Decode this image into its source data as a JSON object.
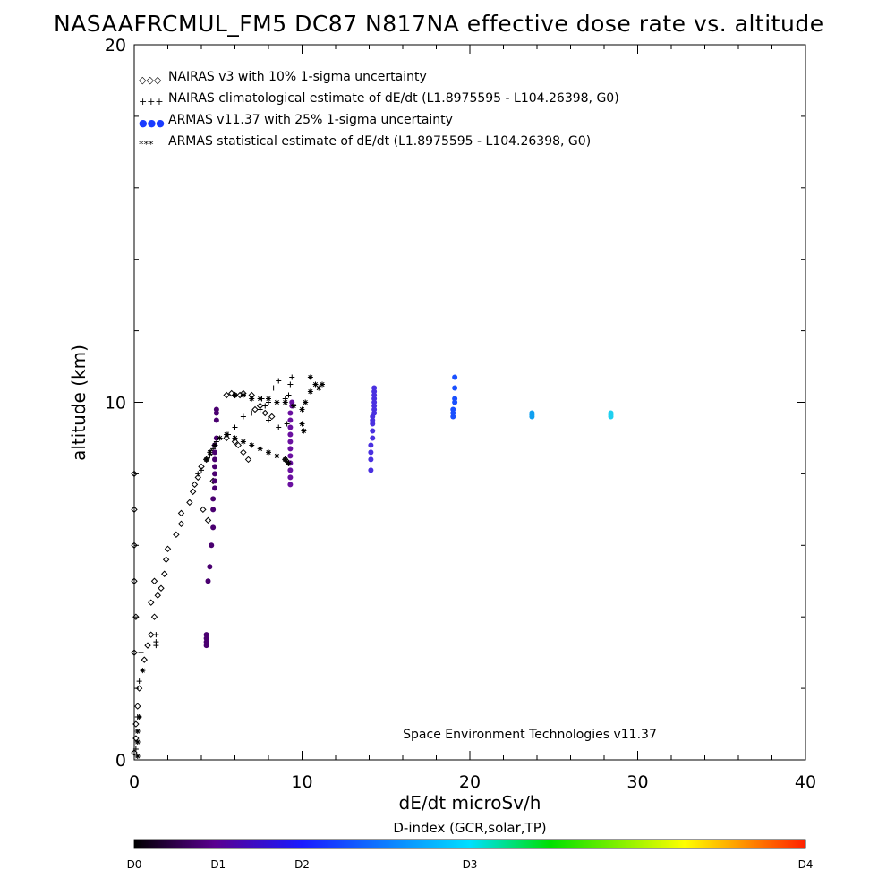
{
  "chart_data": {
    "type": "scatter",
    "title": "NASAAFRCMUL_FM5 DC87 N817NA effective dose rate vs. altitude",
    "xlabel": "dE/dt microSv/h",
    "ylabel": "altitude (km)",
    "xlim": [
      0,
      40
    ],
    "ylim": [
      0,
      20
    ],
    "xticks": [
      "0",
      "10",
      "20",
      "30",
      "40"
    ],
    "yticks": [
      "0",
      "10",
      "20"
    ],
    "legend_position": "top-left",
    "legend": [
      {
        "symbol": "◇◇◇",
        "label": "NAIRAS v3 with 10% 1-sigma uncertainty",
        "color": "#000000"
      },
      {
        "symbol": "+++",
        "label": "NAIRAS climatological estimate of dE/dt (L1.8975595 - L104.26398, G0)",
        "color": "#000000"
      },
      {
        "symbol": "●●●",
        "label": "ARMAS v11.37 with 25% 1-sigma uncertainty",
        "color": "#1a3cff"
      },
      {
        "symbol": "***",
        "label": "ARMAS statistical estimate of dE/dt (L1.8975595 - L104.26398, G0)",
        "color": "#000000"
      }
    ],
    "annotation": "Space Environment Technologies v11.37",
    "colorbar": {
      "title": "D-index (GCR,solar,TP)",
      "labels": [
        "D0",
        "D1",
        "D2",
        "D3",
        "D4"
      ],
      "label_positions": [
        0,
        0.125,
        0.25,
        0.5,
        1.0
      ],
      "colors": [
        "#000000",
        "#5a0090",
        "#1a1aff",
        "#00e0ff",
        "#00e000",
        "#ffff00",
        "#ff2000"
      ]
    },
    "series": [
      {
        "name": "NAIRAS v3",
        "marker": "diamond",
        "color": "#000000",
        "points": [
          [
            0.0,
            0.2
          ],
          [
            0.1,
            0.6
          ],
          [
            0.1,
            1.0
          ],
          [
            0.2,
            1.5
          ],
          [
            0.3,
            2.0
          ],
          [
            0.0,
            3.0
          ],
          [
            0.1,
            4.0
          ],
          [
            0.0,
            5.0
          ],
          [
            0.0,
            6.0
          ],
          [
            0.0,
            7.0
          ],
          [
            0.0,
            8.0
          ],
          [
            0.6,
            2.8
          ],
          [
            0.8,
            3.2
          ],
          [
            1.0,
            3.5
          ],
          [
            1.2,
            4.0
          ],
          [
            1.0,
            4.4
          ],
          [
            1.4,
            4.6
          ],
          [
            1.6,
            4.8
          ],
          [
            1.2,
            5.0
          ],
          [
            1.8,
            5.2
          ],
          [
            1.9,
            5.6
          ],
          [
            2.0,
            5.9
          ],
          [
            2.5,
            6.3
          ],
          [
            2.8,
            6.6
          ],
          [
            2.8,
            6.9
          ],
          [
            3.3,
            7.2
          ],
          [
            3.5,
            7.5
          ],
          [
            3.6,
            7.7
          ],
          [
            3.8,
            7.9
          ],
          [
            4.0,
            8.2
          ],
          [
            4.3,
            8.4
          ],
          [
            4.6,
            8.6
          ],
          [
            4.8,
            8.8
          ],
          [
            4.1,
            7.0
          ],
          [
            4.4,
            6.7
          ],
          [
            4.7,
            7.8
          ],
          [
            5.5,
            10.2
          ],
          [
            5.8,
            10.25
          ],
          [
            6.0,
            10.2
          ],
          [
            6.3,
            10.2
          ],
          [
            6.5,
            10.25
          ],
          [
            7.0,
            10.2
          ],
          [
            7.2,
            9.8
          ],
          [
            7.5,
            9.9
          ],
          [
            7.8,
            9.7
          ],
          [
            8.2,
            9.6
          ],
          [
            6.8,
            8.4
          ],
          [
            6.5,
            8.6
          ],
          [
            6.2,
            8.8
          ],
          [
            6.0,
            8.9
          ],
          [
            5.5,
            9.0
          ],
          [
            9.0,
            8.4
          ],
          [
            9.2,
            8.3
          ]
        ]
      },
      {
        "name": "NAIRAS climatological",
        "marker": "plus",
        "color": "#000000",
        "points": [
          [
            0.1,
            0.3
          ],
          [
            0.2,
            1.2
          ],
          [
            0.3,
            2.2
          ],
          [
            0.4,
            3.0
          ],
          [
            1.3,
            3.2
          ],
          [
            1.3,
            3.3
          ],
          [
            1.3,
            3.5
          ],
          [
            3.8,
            8.0
          ],
          [
            4.0,
            8.1
          ],
          [
            4.5,
            8.5
          ],
          [
            4.7,
            8.7
          ],
          [
            4.9,
            8.9
          ],
          [
            5.6,
            9.1
          ],
          [
            6.0,
            9.3
          ],
          [
            6.5,
            9.6
          ],
          [
            7.0,
            9.7
          ],
          [
            7.5,
            9.8
          ],
          [
            7.8,
            9.9
          ],
          [
            8.0,
            10.0
          ],
          [
            8.3,
            10.4
          ],
          [
            8.6,
            10.6
          ],
          [
            9.0,
            10.1
          ],
          [
            9.2,
            10.2
          ],
          [
            9.3,
            10.5
          ],
          [
            9.4,
            10.7
          ],
          [
            7.6,
            10.1
          ],
          [
            8.0,
            9.5
          ],
          [
            8.6,
            9.3
          ],
          [
            9.1,
            9.4
          ]
        ]
      },
      {
        "name": "ARMAS v11.37",
        "marker": "dot",
        "points": [
          [
            4.3,
            3.2
          ],
          [
            4.3,
            3.3
          ],
          [
            4.3,
            3.4
          ],
          [
            4.3,
            3.5
          ],
          [
            4.4,
            5.0
          ],
          [
            4.5,
            5.4
          ],
          [
            4.6,
            6.0
          ],
          [
            4.7,
            6.5
          ],
          [
            4.7,
            7.0
          ],
          [
            4.7,
            7.3
          ],
          [
            4.8,
            7.6
          ],
          [
            4.8,
            7.8
          ],
          [
            4.8,
            8.0
          ],
          [
            4.8,
            8.2
          ],
          [
            4.8,
            8.4
          ],
          [
            4.8,
            8.6
          ],
          [
            4.8,
            8.8
          ],
          [
            4.9,
            9.0
          ],
          [
            4.9,
            9.5
          ],
          [
            4.9,
            9.7
          ],
          [
            4.9,
            9.8
          ],
          [
            9.3,
            7.7
          ],
          [
            9.3,
            7.9
          ],
          [
            9.3,
            8.1
          ],
          [
            9.3,
            8.3
          ],
          [
            9.3,
            8.5
          ],
          [
            9.3,
            8.7
          ],
          [
            9.3,
            8.9
          ],
          [
            9.3,
            9.1
          ],
          [
            9.3,
            9.3
          ],
          [
            9.3,
            9.5
          ],
          [
            9.3,
            9.7
          ],
          [
            9.4,
            9.9
          ],
          [
            9.4,
            10.0
          ],
          [
            14.1,
            8.1
          ],
          [
            14.1,
            8.4
          ],
          [
            14.1,
            8.6
          ],
          [
            14.1,
            8.8
          ],
          [
            14.2,
            9.0
          ],
          [
            14.2,
            9.2
          ],
          [
            14.2,
            9.4
          ],
          [
            14.2,
            9.5
          ],
          [
            14.2,
            9.6
          ],
          [
            14.3,
            9.7
          ],
          [
            14.3,
            9.8
          ],
          [
            14.3,
            9.9
          ],
          [
            14.3,
            10.0
          ],
          [
            14.3,
            10.1
          ],
          [
            14.3,
            10.2
          ],
          [
            14.3,
            10.3
          ],
          [
            14.3,
            10.4
          ],
          [
            19.0,
            9.6
          ],
          [
            19.0,
            9.7
          ],
          [
            19.0,
            9.8
          ],
          [
            19.1,
            10.0
          ],
          [
            19.1,
            10.1
          ],
          [
            19.1,
            10.4
          ],
          [
            19.1,
            10.7
          ],
          [
            23.7,
            9.6
          ],
          [
            23.7,
            9.65
          ],
          [
            23.7,
            9.7
          ],
          [
            28.4,
            9.6
          ],
          [
            28.4,
            9.65
          ],
          [
            28.4,
            9.7
          ]
        ]
      },
      {
        "name": "ARMAS statistical",
        "marker": "asterisk",
        "color": "#000000",
        "points": [
          [
            0.2,
            0.1
          ],
          [
            0.2,
            0.5
          ],
          [
            0.2,
            0.8
          ],
          [
            0.3,
            1.2
          ],
          [
            0.5,
            2.5
          ],
          [
            4.3,
            8.4
          ],
          [
            4.5,
            8.6
          ],
          [
            4.8,
            8.8
          ],
          [
            5.1,
            9.0
          ],
          [
            5.5,
            9.1
          ],
          [
            6.0,
            9.0
          ],
          [
            6.5,
            8.9
          ],
          [
            7.0,
            8.8
          ],
          [
            7.5,
            8.7
          ],
          [
            8.0,
            8.6
          ],
          [
            8.5,
            8.5
          ],
          [
            9.0,
            8.4
          ],
          [
            9.2,
            8.3
          ],
          [
            6.0,
            10.2
          ],
          [
            6.5,
            10.2
          ],
          [
            7.0,
            10.1
          ],
          [
            7.5,
            10.1
          ],
          [
            8.0,
            10.1
          ],
          [
            8.5,
            10.0
          ],
          [
            9.0,
            10.0
          ],
          [
            9.5,
            9.9
          ],
          [
            10.0,
            9.8
          ],
          [
            10.2,
            10.0
          ],
          [
            10.5,
            10.3
          ],
          [
            10.8,
            10.5
          ],
          [
            11.0,
            10.4
          ],
          [
            11.2,
            10.5
          ],
          [
            10.0,
            9.4
          ],
          [
            10.1,
            9.2
          ],
          [
            10.5,
            10.7
          ]
        ]
      }
    ]
  }
}
